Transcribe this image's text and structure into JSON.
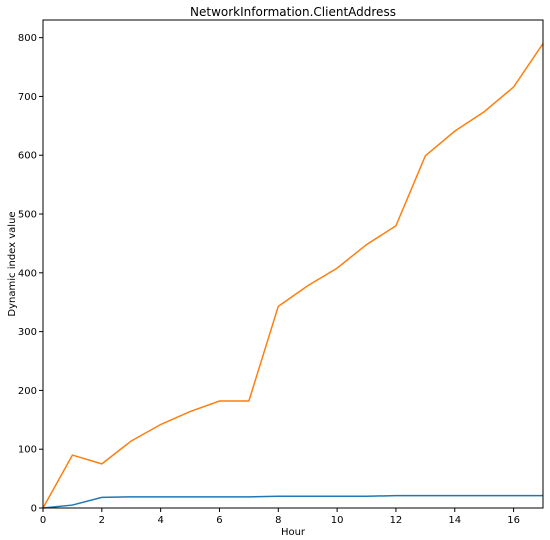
{
  "chart_data": {
    "type": "line",
    "title": "NetworkInformation.ClientAddress",
    "xlabel": "Hour",
    "ylabel": "Dynamic index value",
    "xlim": [
      0,
      17
    ],
    "ylim": [
      0,
      830
    ],
    "xticks": [
      0,
      2,
      4,
      6,
      8,
      10,
      12,
      14,
      16
    ],
    "yticks": [
      0,
      100,
      200,
      300,
      400,
      500,
      600,
      700,
      800
    ],
    "grid": false,
    "x": [
      0,
      1,
      2,
      3,
      4,
      5,
      6,
      7,
      8,
      9,
      10,
      11,
      12,
      13,
      14,
      15,
      16,
      17
    ],
    "series": [
      {
        "color": "#1f77b4",
        "values": [
          0,
          5,
          18,
          19,
          19,
          19,
          19,
          19,
          20,
          20,
          20,
          20,
          21,
          21,
          21,
          21,
          21,
          21
        ]
      },
      {
        "color": "#ff7f0e",
        "values": [
          0,
          90,
          75,
          114,
          142,
          164,
          182,
          182,
          343,
          378,
          408,
          448,
          480,
          599,
          641,
          674,
          716,
          790
        ]
      }
    ]
  }
}
